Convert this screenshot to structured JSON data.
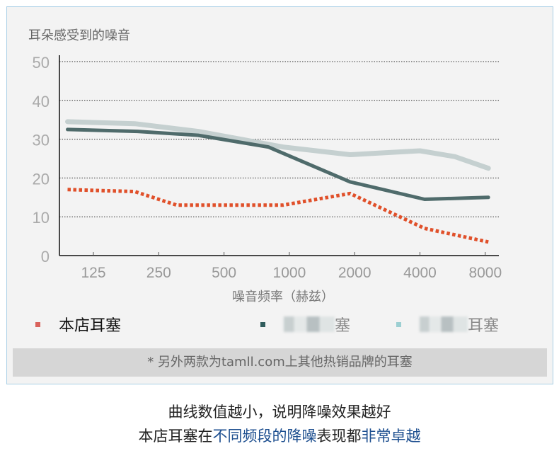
{
  "title": "耳朵感受到的噪音",
  "chart_data": {
    "type": "line",
    "title": "耳朵感受到的噪音",
    "xlabel": "噪音频率（赫兹）",
    "ylabel": "",
    "xscale": "log2",
    "xticks": [
      "125",
      "250",
      "500",
      "1000",
      "2000",
      "4000",
      "8000"
    ],
    "xtick_values": [
      125,
      250,
      500,
      1000,
      2000,
      4000,
      8000
    ],
    "yticks": [
      "0",
      "10",
      "20",
      "30",
      "40",
      "50"
    ],
    "ylim": [
      0,
      50
    ],
    "grid": "horizontal dotted",
    "series": [
      {
        "name": "本店耳塞",
        "color": "#e0502a",
        "style": "dotted",
        "x": [
          95,
          194,
          303,
          642,
          934,
          1906,
          4200,
          8270
        ],
        "y": [
          17,
          16.5,
          13,
          13,
          13,
          16,
          7,
          3.5
        ]
      },
      {
        "name": "塞",
        "color": "#4f6b6b",
        "style": "solid",
        "x": [
          95,
          200,
          380,
          800,
          1906,
          4200,
          8270
        ],
        "y": [
          32.5,
          32,
          31,
          28,
          19,
          14.5,
          15
        ]
      },
      {
        "name": "耳塞",
        "color": "#c5d0d0",
        "style": "solid",
        "x": [
          95,
          194,
          380,
          934,
          1906,
          4000,
          5800,
          8270
        ],
        "y": [
          34.5,
          34,
          32,
          28,
          26,
          27,
          25.5,
          22.5
        ]
      }
    ]
  },
  "legend": [
    {
      "label": "本店耳塞",
      "color": "#d9625c"
    },
    {
      "label": "塞",
      "color": "#2f5c5c"
    },
    {
      "label": "耳塞",
      "color": "#9ccfd2"
    }
  ],
  "note": "* 另外两款为tamll.com上其他热销品牌的耳塞",
  "caption1": "曲线数值越小，说明降噪效果越好",
  "caption2": {
    "a": "本店耳塞在",
    "b": "不同频段的降噪",
    "c": "表现都",
    "d": "非常卓越"
  }
}
